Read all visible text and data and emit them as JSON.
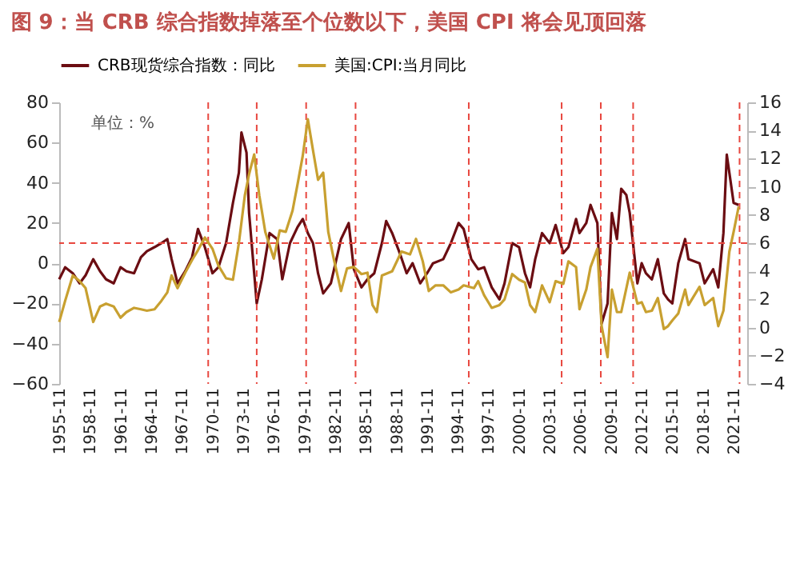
{
  "chart_data": {
    "type": "line",
    "title": "图 9：当 CRB 综合指数掉落至个位数以下，美国 CPI 将会见顶回落",
    "annotations": [
      "单位：%"
    ],
    "xlim": [
      "1955-11",
      "2023-03"
    ],
    "xticks": [
      "1955-11",
      "1958-11",
      "1961-11",
      "1964-11",
      "1967-11",
      "1970-11",
      "1973-11",
      "1976-11",
      "1979-11",
      "1982-11",
      "1985-11",
      "1988-11",
      "1991-11",
      "1994-11",
      "1997-11",
      "2000-11",
      "2003-11",
      "2006-11",
      "2009-11",
      "2012-11",
      "2015-11",
      "2018-11",
      "2021-11"
    ],
    "ylim": [
      -60,
      80
    ],
    "yticks": [
      -60,
      -40,
      -20,
      0,
      20,
      40,
      60,
      80
    ],
    "y2lim": [
      -4,
      16
    ],
    "y2ticks": [
      -4,
      -2,
      0,
      2,
      4,
      6,
      8,
      10,
      12,
      14,
      16
    ],
    "grid": false,
    "legend": "top",
    "ref_lines": [
      {
        "axis": "y",
        "value": 10,
        "color": "#e8473f",
        "line_style": "dashed"
      },
      {
        "axis": "x",
        "value": "1970-06",
        "color": "#e8473f",
        "line_style": "dashed"
      },
      {
        "axis": "x",
        "value": "1975-03",
        "color": "#e8473f",
        "line_style": "dashed"
      },
      {
        "axis": "x",
        "value": "1980-01",
        "color": "#e8473f",
        "line_style": "dashed"
      },
      {
        "axis": "x",
        "value": "1984-11",
        "color": "#e8473f",
        "line_style": "dashed"
      },
      {
        "axis": "x",
        "value": "1995-12",
        "color": "#e8473f",
        "line_style": "dashed"
      },
      {
        "axis": "x",
        "value": "2005-01",
        "color": "#e8473f",
        "line_style": "dashed"
      },
      {
        "axis": "x",
        "value": "2008-11",
        "color": "#e8473f",
        "line_style": "dashed"
      },
      {
        "axis": "x",
        "value": "2012-01",
        "color": "#e8473f",
        "line_style": "dashed"
      },
      {
        "axis": "x",
        "value": "2022-06",
        "color": "#e8473f",
        "line_style": "dashed"
      }
    ],
    "series": [
      {
        "name": "CRB现货综合指数：同比",
        "color": "#6b0d12",
        "x": [
          "1955-11",
          "1956-06",
          "1957-03",
          "1957-11",
          "1958-06",
          "1959-03",
          "1959-11",
          "1960-06",
          "1961-03",
          "1961-11",
          "1962-06",
          "1963-03",
          "1963-11",
          "1964-06",
          "1965-03",
          "1965-11",
          "1966-06",
          "1966-11",
          "1967-06",
          "1968-03",
          "1968-11",
          "1969-06",
          "1970-02",
          "1970-11",
          "1971-06",
          "1972-03",
          "1972-11",
          "1973-06",
          "1973-09",
          "1974-03",
          "1974-06",
          "1974-12",
          "1975-03",
          "1975-09",
          "1976-06",
          "1977-03",
          "1977-09",
          "1978-06",
          "1979-03",
          "1979-09",
          "1980-03",
          "1980-09",
          "1981-03",
          "1981-09",
          "1982-06",
          "1983-06",
          "1984-03",
          "1984-09",
          "1985-06",
          "1986-01",
          "1986-09",
          "1987-06",
          "1987-11",
          "1988-06",
          "1989-03",
          "1989-11",
          "1990-06",
          "1991-03",
          "1991-11",
          "1992-06",
          "1993-06",
          "1994-03",
          "1994-12",
          "1995-06",
          "1996-03",
          "1996-11",
          "1997-06",
          "1998-03",
          "1998-12",
          "1999-06",
          "2000-03",
          "2000-11",
          "2001-06",
          "2001-12",
          "2002-06",
          "2003-02",
          "2003-11",
          "2004-06",
          "2005-03",
          "2005-09",
          "2006-06",
          "2006-10",
          "2007-06",
          "2007-11",
          "2008-07",
          "2008-12",
          "2009-07",
          "2009-12",
          "2010-06",
          "2010-11",
          "2011-05",
          "2011-09",
          "2012-06",
          "2012-11",
          "2013-04",
          "2013-11",
          "2014-06",
          "2015-01",
          "2015-06",
          "2015-11",
          "2016-06",
          "2017-02",
          "2017-06",
          "2018-07",
          "2019-01",
          "2019-11",
          "2020-05",
          "2020-11",
          "2021-03",
          "2021-06",
          "2021-11",
          "2022-05"
        ],
        "values": [
          -8,
          -2,
          -5,
          -10,
          -6,
          2,
          -4,
          -8,
          -10,
          -2,
          -4,
          -5,
          3,
          6,
          8,
          10,
          12,
          2,
          -10,
          -4,
          3,
          17,
          8,
          -5,
          -2,
          10,
          30,
          45,
          65,
          55,
          25,
          -5,
          -20,
          -8,
          15,
          12,
          -8,
          10,
          18,
          22,
          15,
          10,
          -5,
          -15,
          -10,
          12,
          20,
          -3,
          -12,
          -8,
          -5,
          10,
          21,
          15,
          5,
          -5,
          0,
          -10,
          -5,
          0,
          2,
          10,
          20,
          17,
          2,
          -3,
          -2,
          -12,
          -18,
          -10,
          10,
          8,
          -5,
          -12,
          2,
          15,
          10,
          19,
          5,
          8,
          22,
          15,
          20,
          29,
          20,
          -30,
          -20,
          25,
          12,
          37,
          34,
          25,
          -10,
          0,
          -5,
          -8,
          2,
          -15,
          -18,
          -20,
          0,
          12,
          2,
          0,
          -10,
          -3,
          -12,
          15,
          54,
          45,
          30,
          29
        ]
      },
      {
        "name": "美国:CPI:当月同比",
        "color": "#c8a030",
        "axis": "y2",
        "x": [
          "1955-11",
          "1956-06",
          "1957-03",
          "1957-11",
          "1958-06",
          "1959-03",
          "1959-11",
          "1960-06",
          "1961-03",
          "1961-11",
          "1962-06",
          "1963-03",
          "1963-11",
          "1964-06",
          "1965-03",
          "1965-11",
          "1966-06",
          "1966-11",
          "1967-06",
          "1968-03",
          "1968-11",
          "1969-06",
          "1970-02",
          "1970-11",
          "1971-06",
          "1972-03",
          "1972-11",
          "1973-06",
          "1974-01",
          "1974-06",
          "1974-12",
          "1975-06",
          "1976-01",
          "1976-11",
          "1977-06",
          "1978-01",
          "1978-09",
          "1979-03",
          "1979-09",
          "1980-03",
          "1980-09",
          "1981-03",
          "1981-09",
          "1982-03",
          "1982-09",
          "1983-06",
          "1984-01",
          "1984-09",
          "1985-06",
          "1986-01",
          "1986-07",
          "1986-12",
          "1987-06",
          "1988-06",
          "1989-05",
          "1990-03",
          "1990-10",
          "1991-06",
          "1992-01",
          "1992-09",
          "1993-06",
          "1994-03",
          "1994-12",
          "1995-06",
          "1996-06",
          "1996-11",
          "1997-06",
          "1998-03",
          "1998-12",
          "1999-06",
          "2000-03",
          "2000-11",
          "2001-06",
          "2001-12",
          "2002-06",
          "2003-02",
          "2003-11",
          "2004-06",
          "2005-03",
          "2005-09",
          "2006-06",
          "2006-10",
          "2007-06",
          "2007-11",
          "2008-07",
          "2008-12",
          "2009-07",
          "2009-12",
          "2010-06",
          "2010-11",
          "2011-09",
          "2012-06",
          "2012-11",
          "2013-04",
          "2013-11",
          "2014-06",
          "2015-01",
          "2015-06",
          "2015-11",
          "2016-06",
          "2017-02",
          "2017-06",
          "2018-07",
          "2019-01",
          "2019-11",
          "2020-05",
          "2020-11",
          "2021-06",
          "2021-11",
          "2022-05"
        ],
        "values": [
          0.4,
          1.9,
          3.7,
          3.3,
          2.8,
          0.4,
          1.5,
          1.7,
          1.5,
          0.7,
          1.1,
          1.4,
          1.3,
          1.2,
          1.3,
          1.9,
          2.5,
          3.7,
          2.8,
          3.9,
          4.8,
          5.5,
          6.4,
          5.6,
          4.4,
          3.5,
          3.4,
          6.0,
          9.4,
          10.9,
          12.3,
          9.4,
          6.8,
          4.9,
          6.9,
          6.8,
          8.3,
          10.2,
          12.2,
          14.8,
          12.6,
          10.5,
          11.0,
          6.8,
          5.0,
          2.6,
          4.2,
          4.3,
          3.8,
          3.9,
          1.6,
          1.1,
          3.7,
          4.0,
          5.4,
          5.2,
          6.3,
          4.7,
          2.6,
          3.0,
          3.0,
          2.5,
          2.7,
          3.0,
          2.8,
          3.3,
          2.3,
          1.4,
          1.6,
          2.0,
          3.8,
          3.4,
          3.2,
          1.6,
          1.1,
          3.0,
          1.8,
          3.3,
          3.1,
          4.7,
          4.3,
          1.3,
          2.7,
          4.3,
          5.6,
          0.1,
          -2.1,
          2.7,
          1.1,
          1.1,
          3.9,
          1.7,
          1.8,
          1.1,
          1.2,
          2.1,
          -0.1,
          0.1,
          0.5,
          1.0,
          2.7,
          1.6,
          2.9,
          1.6,
          2.1,
          0.1,
          1.2,
          5.4,
          6.8,
          8.6
        ]
      }
    ]
  }
}
